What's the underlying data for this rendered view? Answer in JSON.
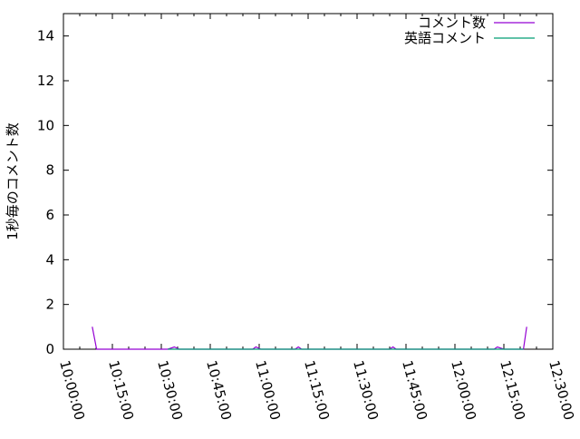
{
  "chart_data": {
    "type": "line",
    "title": "",
    "xlabel": "",
    "ylabel": "1秒毎のコメント数",
    "xlim": [
      "10:00:00",
      "12:30:00"
    ],
    "ylim": [
      0,
      15
    ],
    "xticks": [
      "10:00:00",
      "10:15:00",
      "10:30:00",
      "10:45:00",
      "11:00:00",
      "11:15:00",
      "11:30:00",
      "11:45:00",
      "12:00:00",
      "12:15:00",
      "12:30:00"
    ],
    "yticks": [
      0,
      2,
      4,
      6,
      8,
      10,
      12,
      14
    ],
    "grid": false,
    "legend": "top-right",
    "series": [
      {
        "name": "コメント数",
        "color": "#9400d3",
        "points": [
          [
            "10:08:50",
            1
          ],
          [
            "10:10:10",
            0
          ],
          [
            "10:32:00",
            0
          ],
          [
            "10:34:00",
            0.1
          ],
          [
            "10:35:30",
            0
          ],
          [
            "10:58:00",
            0
          ],
          [
            "10:59:00",
            0.1
          ],
          [
            "11:00:30",
            0
          ],
          [
            "11:11:00",
            0
          ],
          [
            "11:12:00",
            0.1
          ],
          [
            "11:13:00",
            0
          ],
          [
            "11:40:00",
            0
          ],
          [
            "11:41:00",
            0.1
          ],
          [
            "11:42:00",
            0
          ],
          [
            "12:12:00",
            0
          ],
          [
            "12:13:00",
            0.1
          ],
          [
            "12:15:00",
            0
          ],
          [
            "12:21:00",
            0
          ],
          [
            "12:22:00",
            1
          ]
        ]
      },
      {
        "name": "英語コメント",
        "color": "#009e73",
        "points": [
          [
            "10:32:00",
            0
          ],
          [
            "10:36:00",
            0
          ],
          [
            "11:10:00",
            0
          ],
          [
            "11:12:00",
            0
          ],
          [
            "11:40:00",
            0
          ],
          [
            "11:46:00",
            0
          ],
          [
            "11:50:00",
            0
          ],
          [
            "11:55:00",
            0
          ],
          [
            "12:08:00",
            0
          ],
          [
            "12:12:00",
            0
          ],
          [
            "12:20:00",
            0
          ],
          [
            "12:21:00",
            0
          ]
        ]
      }
    ]
  }
}
